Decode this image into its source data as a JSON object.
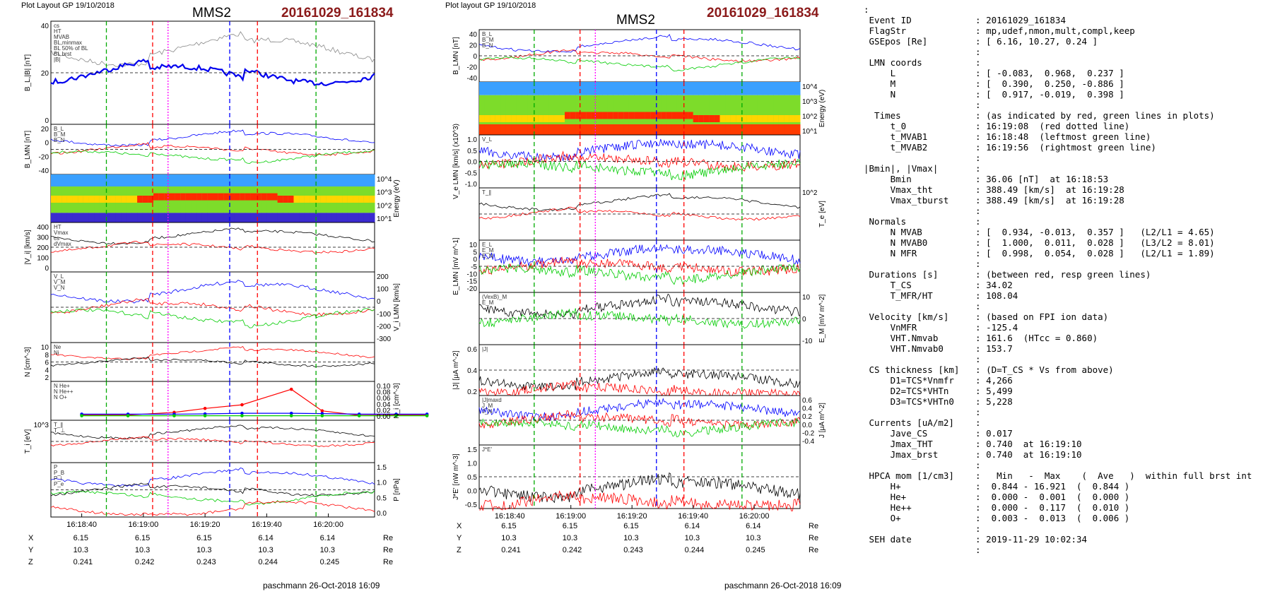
{
  "left_panel": {
    "header": "Plot Layout GP 19/10/2018",
    "title": "MMS2",
    "event": "20161029_161834",
    "footer": "paschmann 26-Oct-2018 16:09",
    "time_ticks": [
      "16:18:40",
      "16:19:00",
      "16:19:20",
      "16:19:40",
      "16:20:00"
    ],
    "coord_rows": [
      {
        "name": "X",
        "values": [
          "6.15",
          "6.15",
          "6.15",
          "6.14",
          "6.14"
        ],
        "unit": "Re"
      },
      {
        "name": "Y",
        "values": [
          "10.3",
          "10.3",
          "10.3",
          "10.3",
          "10.3"
        ],
        "unit": "Re"
      },
      {
        "name": "Z",
        "values": [
          "0.241",
          "0.242",
          "0.243",
          "0.244",
          "0.245"
        ],
        "unit": "Re"
      }
    ],
    "panels": [
      {
        "id": "bl",
        "ylabel": "B_L,|B| [nT]",
        "ticks": [
          "40",
          "20",
          "0"
        ],
        "side": "left",
        "legend": [
          "cs",
          "HT",
          "MVAB",
          "BL,minmax",
          "BL 50% of BL",
          "BL brst",
          "|B|"
        ]
      },
      {
        "id": "blmn",
        "ylabel": "B_LMN [nT]",
        "ticks": [
          "20",
          "0",
          "-20",
          "-40"
        ],
        "side": "left",
        "legend": [
          "B_L",
          "B_M",
          "B_N"
        ]
      },
      {
        "id": "spec_i",
        "ylabel": "Energy (eV)",
        "ticks": [
          "10^4",
          "10^3",
          "10^2",
          "10^1"
        ],
        "side": "right",
        "legend": []
      },
      {
        "id": "vi",
        "ylabel": "|V_i| [km/s]",
        "ticks": [
          "400",
          "300",
          "200",
          "100",
          "0"
        ],
        "side": "left",
        "legend": [
          "HT",
          "Vmax",
          "cs",
          "dVmax"
        ]
      },
      {
        "id": "vilmn",
        "ylabel": "V_i LMN [km/s]",
        "ticks": [
          "200",
          "100",
          "0",
          "-100",
          "-200",
          "-300"
        ],
        "side": "right",
        "legend": [
          "V_L",
          "V_M",
          "V_N"
        ]
      },
      {
        "id": "n",
        "ylabel": "N [cm^-3]",
        "ticks": [
          "10",
          "8",
          "6",
          "4",
          "2"
        ],
        "side": "left",
        "legend": [
          "Ne",
          "Ni"
        ]
      },
      {
        "id": "hpca",
        "ylabel": "N_i [cm^-3]",
        "ticks": [
          "0.10",
          "0.08",
          "0.06",
          "0.04",
          "0.02",
          "0.00"
        ],
        "side": "right",
        "legend": [
          "N He+",
          "N He++",
          "N O+"
        ]
      },
      {
        "id": "ti",
        "ylabel": "T_i [eV]",
        "ticks": [
          "10^3"
        ],
        "side": "left",
        "legend": [
          "T_∥",
          "T_⊥"
        ]
      },
      {
        "id": "p",
        "ylabel": "P [nPa]",
        "ticks": [
          "1.5",
          "1.0",
          "0.5",
          "0.0"
        ],
        "side": "right",
        "legend": [
          "P",
          "P_B",
          "P_i",
          "P_e"
        ]
      }
    ]
  },
  "right_panel": {
    "header": "Plot layout GP 19/10/2018",
    "title": "MMS2",
    "event": "20161029_161834",
    "footer": "paschmann 26-Oct-2018 16:09",
    "time_ticks": [
      "16:18:40",
      "16:19:00",
      "16:19:20",
      "16:19:40",
      "16:20:00"
    ],
    "coord_rows": [
      {
        "name": "X",
        "values": [
          "6.15",
          "6.15",
          "6.15",
          "6.14",
          "6.14"
        ],
        "unit": "Re"
      },
      {
        "name": "Y",
        "values": [
          "10.3",
          "10.3",
          "10.3",
          "10.3",
          "10.3"
        ],
        "unit": "Re"
      },
      {
        "name": "Z",
        "values": [
          "0.241",
          "0.242",
          "0.243",
          "0.244",
          "0.245"
        ],
        "unit": "Re"
      }
    ],
    "panels": [
      {
        "id": "blmn",
        "ylabel": "B_LMN [nT]",
        "ticks": [
          "40",
          "20",
          "0",
          "-20",
          "-40"
        ],
        "side": "left",
        "legend": [
          "B_L",
          "B_M",
          "B_N"
        ]
      },
      {
        "id": "spec_e",
        "ylabel": "Energy (eV)",
        "ticks": [
          "10^4",
          "10^3",
          "10^2",
          "10^1"
        ],
        "side": "right",
        "legend": []
      },
      {
        "id": "ve",
        "ylabel": "V_e LMN [km/s] (x10^3)",
        "ticks": [
          "1.0",
          "0.5",
          "0.0",
          "-0.5",
          "-1.0"
        ],
        "side": "left",
        "legend": [
          "V_L"
        ]
      },
      {
        "id": "te",
        "ylabel": "T_e [eV]",
        "ticks": [
          "10^2"
        ],
        "side": "right",
        "legend": [
          "T_∥"
        ]
      },
      {
        "id": "elmn",
        "ylabel": "E_LMN [mV m^-1]",
        "ticks": [
          "10",
          "5",
          "0",
          "-5",
          "-10",
          "-15",
          "-20"
        ],
        "side": "left",
        "legend": [
          "E_L",
          "E_M",
          "E_N"
        ]
      },
      {
        "id": "em",
        "ylabel": "E_M [mV m^-2]",
        "ticks": [
          "10",
          "0",
          "-10"
        ],
        "side": "right",
        "legend": [
          "(VexB)_M",
          "E_M"
        ]
      },
      {
        "id": "j",
        "ylabel": "|J| [μA m^-2]",
        "ticks": [
          "0.6",
          "0.4",
          "0.2"
        ],
        "side": "left",
        "legend": [
          "|J|"
        ]
      },
      {
        "id": "jlmn",
        "ylabel": "J [μA m^-2]",
        "ticks": [
          "0.6",
          "0.4",
          "0.2",
          "0.0",
          "-0.2",
          "-0.4"
        ],
        "side": "right",
        "legend": [
          "|J|maxd",
          "J_M",
          "J_N"
        ]
      },
      {
        "id": "je",
        "ylabel": "J*E' [nW m^-3]",
        "ticks": [
          "1.5",
          "1.0",
          "0.5",
          "0.0",
          "-0.5"
        ],
        "side": "left",
        "legend": [
          "J*E'"
        ]
      }
    ]
  },
  "info_lines": [
    ":",
    " Event ID            : 20161029_161834",
    " FlagStr             : mp,udef,nmon,mult,compl,keep",
    " GSEpos [Re]         : [ 6.16, 10.27, 0.24 ]",
    "                     :",
    " LMN coords          :",
    "     L               : [ -0.083,  0.968,  0.237 ]",
    "     M               : [  0.390,  0.250, -0.886 ]",
    "     N               : [  0.917, -0.019,  0.398 ]",
    "                     :",
    "  Times              : (as indicated by red, green lines in plots)",
    "     t_0             : 16:19:08  (red dotted line)",
    "     t_MVAB1         : 16:18:48  (leftmost green line)",
    "     t_MVAB2         : 16:19:56  (rightmost green line)",
    "                     :",
    "|Bmin|, |Vmax|       :",
    "     Bmin            : 36.06 [nT]  at 16:18:53",
    "     Vmax_tht        : 388.49 [km/s]  at 16:19:28",
    "     Vmax_tburst     : 388.49 [km/s]  at 16:19:28",
    "                     :",
    " Normals             :",
    "     N MVAB          : [  0.934, -0.013,  0.357 ]   (L2/L1 = 4.65)",
    "     N MVAB0         : [  1.000,  0.011,  0.028 ]   (L3/L2 = 8.01)",
    "     N MFR           : [  0.998,  0.054,  0.028 ]   (L2/L1 = 1.89)",
    "                     :",
    " Durations [s]       : (between red, resp green lines)",
    "     T_CS            : 34.02",
    "     T_MFR/HT        : 108.04",
    "                     :",
    " Velocity [km/s]     : (based on FPI ion data)",
    "     VnMFR           : -125.4",
    "     VHT.Nmvab       : 161.6  (HTcc = 0.860)",
    "     VHT.Nmvab0      : 153.7",
    "                     :",
    " CS thickness [km]   : (D=T_CS * Vs from above)",
    "     D1=TCS*Vnmfr    : 4,266",
    "     D2=TCS*VHTn     : 5,499",
    "     D3=TCS*VHTn0    : 5,228",
    "                     :",
    " Currents [uA/m2]    :",
    "     Jave_CS         : 0.017",
    "     Jmax_THT        : 0.740  at 16:19:10",
    "     Jmax_brst       : 0.740  at 16:19:10",
    "                     :",
    " HPCA mom [1/cm3]    :   Min   -  Max    (  Ave   )  within full brst int",
    "     H+              :  0.844 - 16.921  (  0.844 )",
    "     He+             :  0.000 -  0.001  (  0.000 )",
    "     He++            :  0.000 -  0.117  (  0.010 )",
    "     O+              :  0.003 -  0.013  (  0.006 )",
    "                     :",
    " SEH date            : 2019-11-29 10:02:34",
    "                     :"
  ],
  "chart_data": {
    "type": "line",
    "title": "MMS2 20161029_161834",
    "x_range": [
      "16:18:30",
      "16:20:15"
    ],
    "markers": {
      "t_MVAB1": "16:18:48",
      "t_MVAB2": "16:19:56",
      "t_0": "16:19:08",
      "cs_start": "16:19:03",
      "cs_end": "16:19:37",
      "Vmax": "16:19:28"
    },
    "hpca_density": {
      "x_s": [
        0,
        15,
        30,
        40,
        52,
        68,
        78,
        90,
        102,
        112
      ],
      "He++": [
        0.003,
        0.003,
        0.012,
        0.025,
        0.037,
        0.088,
        0.017,
        0.002,
        0.003,
        0.003
      ],
      "O+": [
        0.006,
        0.006,
        0.006,
        0.007,
        0.009,
        0.009,
        0.008,
        0.006,
        0.006,
        0.006
      ],
      "He+": [
        0.001,
        0.001,
        0.001,
        0.001,
        0.001,
        0.001,
        0.001,
        0.001,
        0.001,
        0.001
      ]
    },
    "colors": {
      "red": "#ff0000",
      "green": "#00cc00",
      "blue": "#0000ff",
      "black": "#000000",
      "magenta": "#ff00ff"
    }
  }
}
